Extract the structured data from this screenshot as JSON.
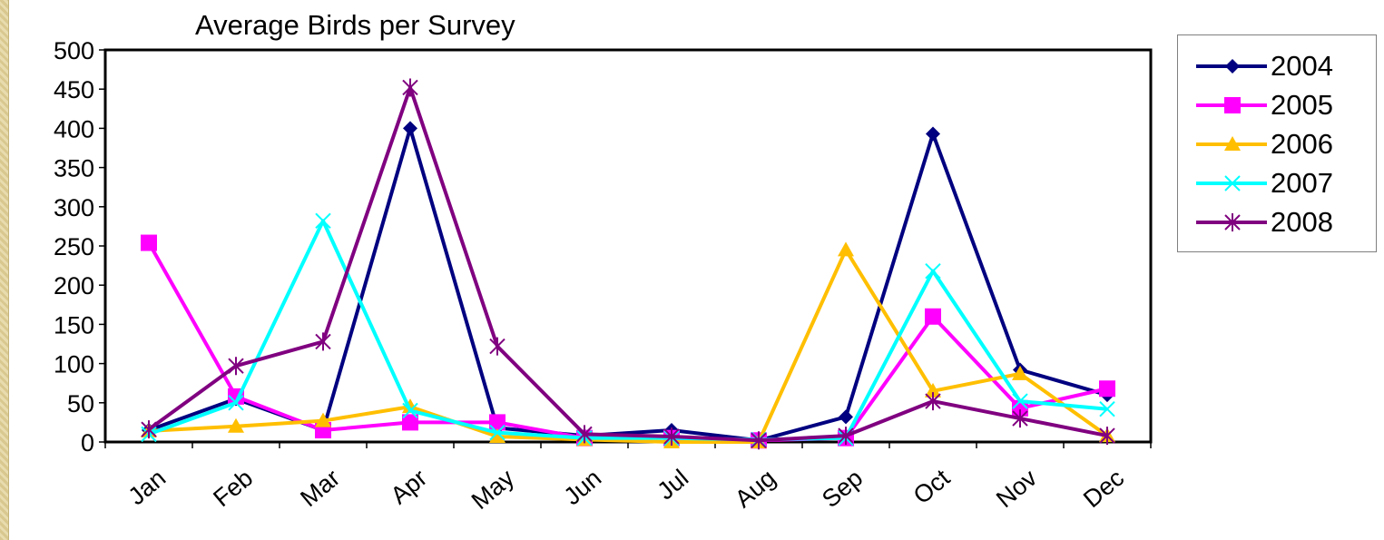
{
  "chart_data": {
    "type": "line",
    "title": "Average Birds per Survey",
    "xlabel": "",
    "ylabel": "",
    "categories": [
      "Jan",
      "Feb",
      "Mar",
      "Apr",
      "May",
      "Jun",
      "Jul",
      "Aug",
      "Sep",
      "Oct",
      "Nov",
      "Dec"
    ],
    "ylim": [
      0,
      500
    ],
    "yticks": [
      "0",
      "50",
      "100",
      "150",
      "200",
      "250",
      "300",
      "350",
      "400",
      "450",
      "500"
    ],
    "grid": false,
    "legend_position": "right",
    "series": [
      {
        "name": "2004",
        "color": "#000080",
        "marker": "diamond",
        "values": [
          15,
          55,
          15,
          400,
          18,
          8,
          15,
          2,
          32,
          393,
          92,
          60
        ]
      },
      {
        "name": "2005",
        "color": "#ff00ff",
        "marker": "square",
        "values": [
          254,
          58,
          15,
          25,
          25,
          5,
          5,
          2,
          5,
          160,
          43,
          68
        ]
      },
      {
        "name": "2006",
        "color": "#ffbf00",
        "marker": "triangle",
        "values": [
          14,
          20,
          27,
          45,
          7,
          3,
          0,
          0,
          245,
          65,
          87,
          8
        ]
      },
      {
        "name": "2007",
        "color": "#00ffff",
        "marker": "x",
        "values": [
          10,
          50,
          282,
          40,
          12,
          5,
          5,
          3,
          5,
          218,
          52,
          42
        ]
      },
      {
        "name": "2008",
        "color": "#800080",
        "marker": "star",
        "values": [
          16,
          97,
          128,
          452,
          122,
          10,
          7,
          2,
          8,
          52,
          30,
          8
        ]
      }
    ]
  }
}
